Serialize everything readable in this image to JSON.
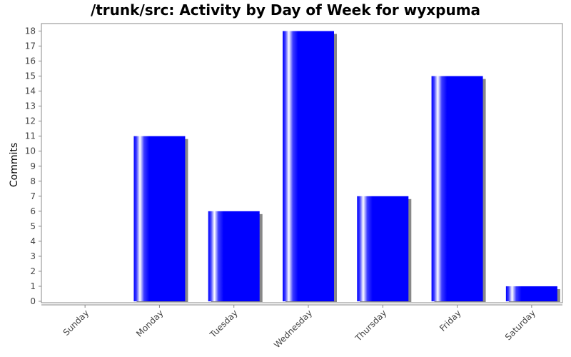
{
  "chart_data": {
    "type": "bar",
    "title": "/trunk/src: Activity by Day of Week for wyxpuma",
    "xlabel": "",
    "ylabel": "Commits",
    "categories": [
      "Sunday",
      "Monday",
      "Tuesday",
      "Wednesday",
      "Thursday",
      "Friday",
      "Saturday"
    ],
    "values": [
      0,
      11,
      6,
      18,
      7,
      15,
      1
    ],
    "ylim": [
      0,
      18.5
    ],
    "yticks": [
      0,
      1,
      2,
      3,
      4,
      5,
      6,
      7,
      8,
      9,
      10,
      11,
      12,
      13,
      14,
      15,
      16,
      17,
      18
    ],
    "bar_color": "#0000ff",
    "shadow_color": "#888888",
    "grid": false,
    "legend": "none"
  }
}
